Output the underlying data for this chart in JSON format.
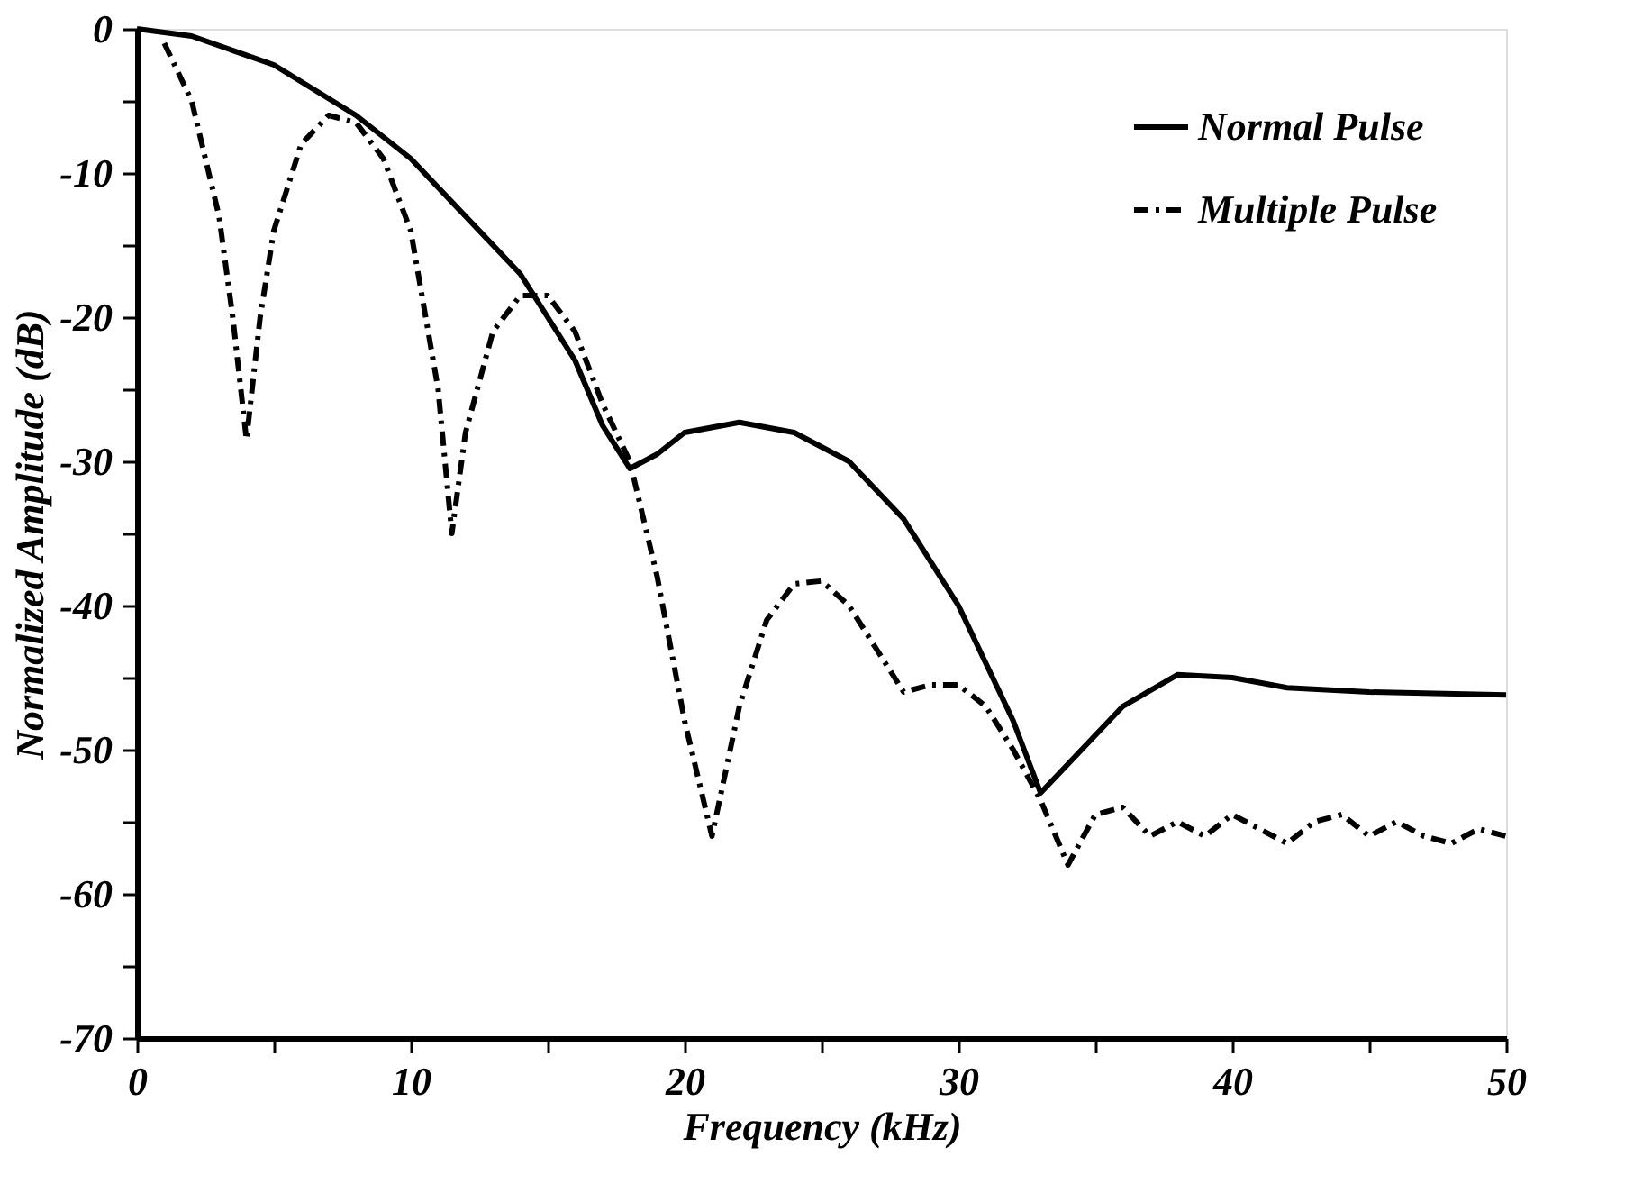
{
  "chart_data": {
    "type": "line",
    "xlabel": "Frequency (kHz)",
    "ylabel": "Normalized Amplitude (dB)",
    "xlim": [
      0,
      50
    ],
    "ylim": [
      -70,
      0
    ],
    "xticks": [
      0,
      {
        "value": 5,
        "label": null
      },
      10,
      {
        "value": 15,
        "label": null
      },
      20,
      {
        "value": 25,
        "label": null
      },
      30,
      {
        "value": 35,
        "label": null
      },
      40,
      {
        "value": 45,
        "label": null
      },
      50
    ],
    "yticks": [
      -70,
      {
        "value": -65,
        "label": null
      },
      -60,
      {
        "value": -55,
        "label": null
      },
      -50,
      {
        "value": -45,
        "label": null
      },
      -40,
      {
        "value": -35,
        "label": null
      },
      -30,
      {
        "value": -25,
        "label": null
      },
      -20,
      {
        "value": -15,
        "label": null
      },
      -10,
      {
        "value": -5,
        "label": null
      },
      0
    ],
    "grid": false,
    "legend": "top right",
    "marker": "none",
    "series": [
      {
        "name": "Normal Pulse",
        "color": "#000000",
        "line_style": "solid",
        "x": [
          0,
          2,
          5,
          8,
          10,
          12,
          14,
          16,
          17,
          18,
          19,
          20,
          22,
          24,
          26,
          28,
          30,
          32,
          33,
          34,
          36,
          38,
          40,
          42,
          45,
          50
        ],
        "values": [
          0,
          -0.5,
          -2.5,
          -6,
          -9,
          -13,
          -17,
          -23,
          -27.5,
          -30.5,
          -29.5,
          -28,
          -27.3,
          -28,
          -30,
          -34,
          -40,
          -48,
          -53,
          -51,
          -47,
          -44.8,
          -45,
          -45.7,
          -46,
          -46.2
        ]
      },
      {
        "name": "Multiple Pulse",
        "color": "#000000",
        "line_style": "dashdot",
        "x": [
          1,
          2,
          3,
          3.5,
          4,
          4.5,
          5,
          6,
          7,
          8,
          9,
          10,
          11,
          11.5,
          12,
          13,
          14,
          15,
          16,
          17,
          18,
          19,
          20,
          21,
          22,
          23,
          24,
          25,
          26,
          27,
          28,
          29,
          30,
          31,
          32,
          33,
          34,
          35,
          36,
          37,
          38,
          39,
          40,
          41,
          42,
          43,
          44,
          45,
          46,
          47,
          48,
          49,
          50
        ],
        "values": [
          -1,
          -5,
          -13,
          -20,
          -28.5,
          -20,
          -14,
          -8,
          -6,
          -6.5,
          -9,
          -14,
          -25,
          -35,
          -28,
          -21,
          -18.5,
          -18.5,
          -21,
          -26,
          -30,
          -38,
          -48,
          -56,
          -47,
          -41,
          -38.5,
          -38.3,
          -40,
          -43,
          -46,
          -45.5,
          -45.5,
          -47,
          -50,
          -53.5,
          -58,
          -54.5,
          -54,
          -56,
          -55,
          -56,
          -54.5,
          -55.5,
          -56.5,
          -55,
          -54.5,
          -56,
          -55,
          -56,
          -56.5,
          -55.5,
          -56
        ]
      }
    ]
  }
}
